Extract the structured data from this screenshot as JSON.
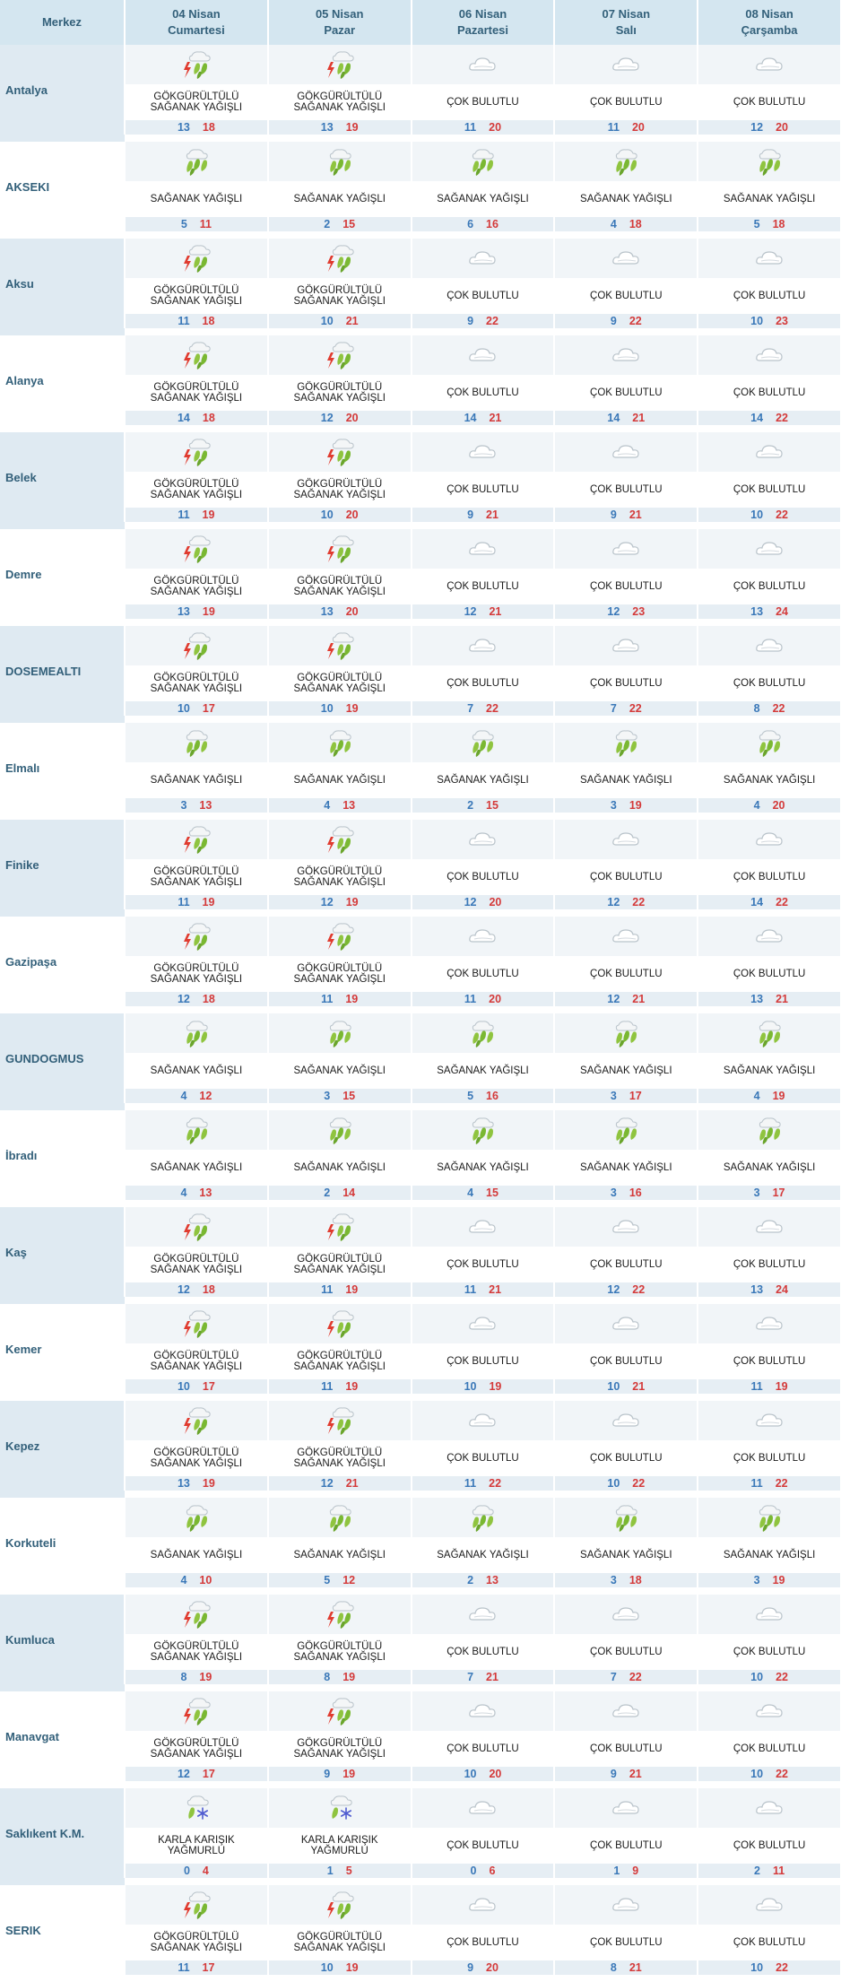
{
  "header": {
    "merkez": "Merkez",
    "days": [
      {
        "date": "04 Nisan",
        "weekday": "Cumartesi"
      },
      {
        "date": "05 Nisan",
        "weekday": "Pazar"
      },
      {
        "date": "06 Nisan",
        "weekday": "Pazartesi"
      },
      {
        "date": "07 Nisan",
        "weekday": "Salı"
      },
      {
        "date": "08 Nisan",
        "weekday": "Çarşamba"
      }
    ]
  },
  "colors": {
    "min_temp": "#3a78b8",
    "max_temp": "#d43a3a",
    "header_bg": "#d4e6f0"
  },
  "conditions": {
    "GSY": {
      "label": "GÖKGÜRÜLTÜLÜ SAĞANAK YAĞIŞLI",
      "icon": "thunder-shower-icon"
    },
    "SY": {
      "label": "SAĞANAK YAĞIŞLI",
      "icon": "heavy-shower-icon"
    },
    "CB": {
      "label": "ÇOK BULUTLU",
      "icon": "cloud-icon"
    },
    "KKY": {
      "label": "KARLA KARIŞIK YAĞMURLU",
      "icon": "sleet-icon"
    }
  },
  "cities": [
    {
      "name": "Antalya",
      "days": [
        [
          "GSY",
          13,
          18
        ],
        [
          "GSY",
          13,
          19
        ],
        [
          "CB",
          11,
          20
        ],
        [
          "CB",
          11,
          20
        ],
        [
          "CB",
          12,
          20
        ]
      ]
    },
    {
      "name": "AKSEKI",
      "days": [
        [
          "SY",
          5,
          11
        ],
        [
          "SY",
          2,
          15
        ],
        [
          "SY",
          6,
          16
        ],
        [
          "SY",
          4,
          18
        ],
        [
          "SY",
          5,
          18
        ]
      ]
    },
    {
      "name": "Aksu",
      "days": [
        [
          "GSY",
          11,
          18
        ],
        [
          "GSY",
          10,
          21
        ],
        [
          "CB",
          9,
          22
        ],
        [
          "CB",
          9,
          22
        ],
        [
          "CB",
          10,
          23
        ]
      ]
    },
    {
      "name": "Alanya",
      "days": [
        [
          "GSY",
          14,
          18
        ],
        [
          "GSY",
          12,
          20
        ],
        [
          "CB",
          14,
          21
        ],
        [
          "CB",
          14,
          21
        ],
        [
          "CB",
          14,
          22
        ]
      ]
    },
    {
      "name": "Belek",
      "days": [
        [
          "GSY",
          11,
          19
        ],
        [
          "GSY",
          10,
          20
        ],
        [
          "CB",
          9,
          21
        ],
        [
          "CB",
          9,
          21
        ],
        [
          "CB",
          10,
          22
        ]
      ]
    },
    {
      "name": "Demre",
      "days": [
        [
          "GSY",
          13,
          19
        ],
        [
          "GSY",
          13,
          20
        ],
        [
          "CB",
          12,
          21
        ],
        [
          "CB",
          12,
          23
        ],
        [
          "CB",
          13,
          24
        ]
      ]
    },
    {
      "name": "DOSEMEALTI",
      "days": [
        [
          "GSY",
          10,
          17
        ],
        [
          "GSY",
          10,
          19
        ],
        [
          "CB",
          7,
          22
        ],
        [
          "CB",
          7,
          22
        ],
        [
          "CB",
          8,
          22
        ]
      ]
    },
    {
      "name": "Elmalı",
      "days": [
        [
          "SY",
          3,
          13
        ],
        [
          "SY",
          4,
          13
        ],
        [
          "SY",
          2,
          15
        ],
        [
          "SY",
          3,
          19
        ],
        [
          "SY",
          4,
          20
        ]
      ]
    },
    {
      "name": "Finike",
      "days": [
        [
          "GSY",
          11,
          19
        ],
        [
          "GSY",
          12,
          19
        ],
        [
          "CB",
          12,
          20
        ],
        [
          "CB",
          12,
          22
        ],
        [
          "CB",
          14,
          22
        ]
      ]
    },
    {
      "name": "Gazipaşa",
      "days": [
        [
          "GSY",
          12,
          18
        ],
        [
          "GSY",
          11,
          19
        ],
        [
          "CB",
          11,
          20
        ],
        [
          "CB",
          12,
          21
        ],
        [
          "CB",
          13,
          21
        ]
      ]
    },
    {
      "name": "GUNDOGMUS",
      "days": [
        [
          "SY",
          4,
          12
        ],
        [
          "SY",
          3,
          15
        ],
        [
          "SY",
          5,
          16
        ],
        [
          "SY",
          3,
          17
        ],
        [
          "SY",
          4,
          19
        ]
      ]
    },
    {
      "name": "İbradı",
      "days": [
        [
          "SY",
          4,
          13
        ],
        [
          "SY",
          2,
          14
        ],
        [
          "SY",
          4,
          15
        ],
        [
          "SY",
          3,
          16
        ],
        [
          "SY",
          3,
          17
        ]
      ]
    },
    {
      "name": "Kaş",
      "days": [
        [
          "GSY",
          12,
          18
        ],
        [
          "GSY",
          11,
          19
        ],
        [
          "CB",
          11,
          21
        ],
        [
          "CB",
          12,
          22
        ],
        [
          "CB",
          13,
          24
        ]
      ]
    },
    {
      "name": "Kemer",
      "days": [
        [
          "GSY",
          10,
          17
        ],
        [
          "GSY",
          11,
          19
        ],
        [
          "CB",
          10,
          19
        ],
        [
          "CB",
          10,
          21
        ],
        [
          "CB",
          11,
          19
        ]
      ]
    },
    {
      "name": "Kepez",
      "days": [
        [
          "GSY",
          13,
          19
        ],
        [
          "GSY",
          12,
          21
        ],
        [
          "CB",
          11,
          22
        ],
        [
          "CB",
          10,
          22
        ],
        [
          "CB",
          11,
          22
        ]
      ]
    },
    {
      "name": "Korkuteli",
      "days": [
        [
          "SY",
          4,
          10
        ],
        [
          "SY",
          5,
          12
        ],
        [
          "SY",
          2,
          13
        ],
        [
          "SY",
          3,
          18
        ],
        [
          "SY",
          3,
          19
        ]
      ]
    },
    {
      "name": "Kumluca",
      "days": [
        [
          "GSY",
          8,
          19
        ],
        [
          "GSY",
          8,
          19
        ],
        [
          "CB",
          7,
          21
        ],
        [
          "CB",
          7,
          22
        ],
        [
          "CB",
          10,
          22
        ]
      ]
    },
    {
      "name": "Manavgat",
      "days": [
        [
          "GSY",
          12,
          17
        ],
        [
          "GSY",
          9,
          19
        ],
        [
          "CB",
          10,
          20
        ],
        [
          "CB",
          9,
          21
        ],
        [
          "CB",
          10,
          22
        ]
      ]
    },
    {
      "name": "Saklıkent K.M.",
      "days": [
        [
          "KKY",
          0,
          4
        ],
        [
          "KKY",
          1,
          5
        ],
        [
          "CB",
          0,
          6
        ],
        [
          "CB",
          1,
          9
        ],
        [
          "CB",
          2,
          11
        ]
      ]
    },
    {
      "name": "SERIK",
      "days": [
        [
          "GSY",
          11,
          17
        ],
        [
          "GSY",
          10,
          19
        ],
        [
          "CB",
          9,
          20
        ],
        [
          "CB",
          8,
          21
        ],
        [
          "CB",
          10,
          22
        ]
      ]
    }
  ]
}
